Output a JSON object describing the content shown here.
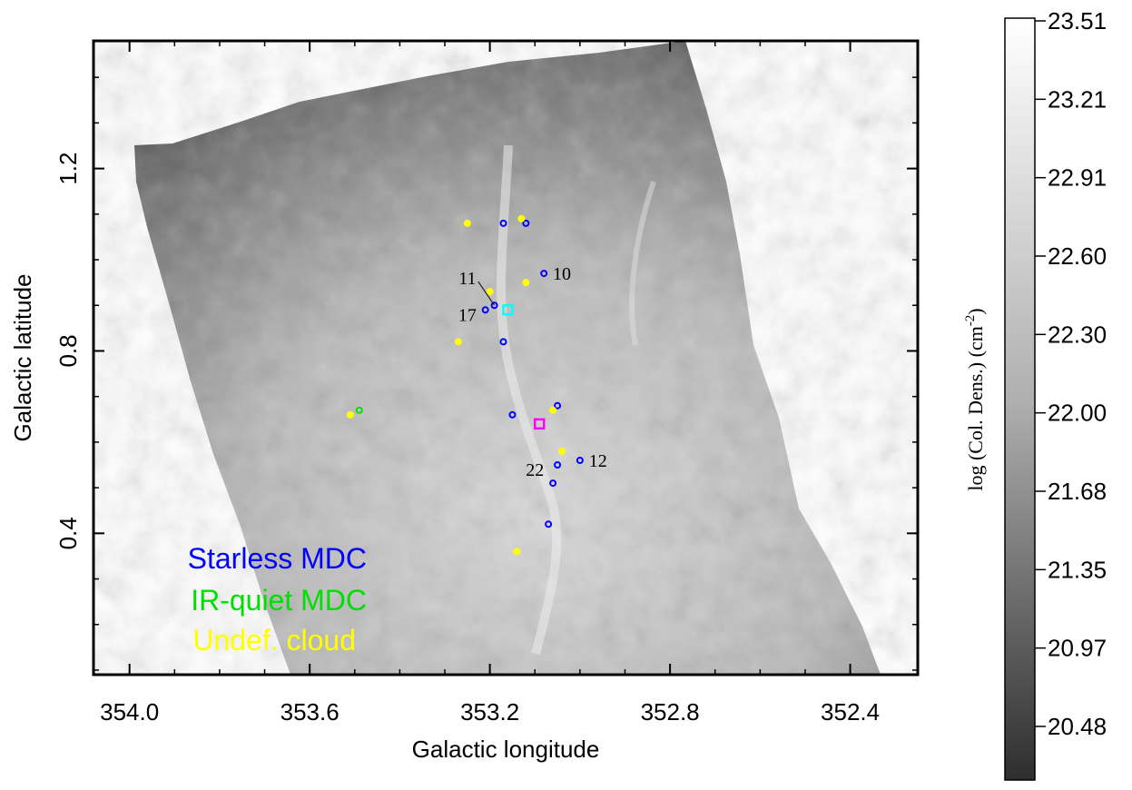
{
  "chart_data": {
    "type": "scatter",
    "background": "column-density map (grayscale)",
    "xlabel": "Galactic longitude",
    "ylabel": "Galactic latitude",
    "xlim": [
      354.08,
      352.25
    ],
    "ylim": [
      0.09,
      1.48
    ],
    "x_reversed": true,
    "xticks": [
      354.0,
      353.6,
      353.2,
      352.8,
      352.4
    ],
    "xtick_labels": [
      "354.0",
      "353.6",
      "353.2",
      "352.8",
      "352.4"
    ],
    "yticks": [
      1.2,
      0.8,
      0.4
    ],
    "ytick_labels": [
      "1.2",
      "0.8",
      "0.4"
    ],
    "colorbar": {
      "title": "log (Col. Dens.) (cm",
      "title_exponent": "-2",
      "title_suffix": ")",
      "ticks": [
        "23.51",
        "23.21",
        "22.91",
        "22.60",
        "22.30",
        "22.00",
        "21.68",
        "21.35",
        "20.97",
        "20.48"
      ],
      "color_top": "#ffffff",
      "color_bottom": "#2e2e2e"
    },
    "legend": [
      {
        "label": "Starless MDC",
        "color": "#0000ff"
      },
      {
        "label": "IR-quiet MDC",
        "color": "#00e000"
      },
      {
        "label": "Undef. cloud",
        "color": "#ffff00"
      }
    ],
    "series": [
      {
        "name": "Starless MDC",
        "color": "#0000ff",
        "marker": "circle-open",
        "points": [
          [
            353.17,
            1.08
          ],
          [
            353.12,
            1.08
          ],
          [
            353.08,
            0.97
          ],
          [
            353.19,
            0.9
          ],
          [
            353.21,
            0.89
          ],
          [
            353.17,
            0.82
          ],
          [
            353.15,
            0.66
          ],
          [
            353.05,
            0.68
          ],
          [
            353.0,
            0.56
          ],
          [
            353.05,
            0.55
          ],
          [
            353.06,
            0.51
          ],
          [
            353.07,
            0.42
          ]
        ]
      },
      {
        "name": "IR-quiet MDC",
        "color": "#00e000",
        "marker": "circle-open",
        "points": [
          [
            353.49,
            0.67
          ]
        ]
      },
      {
        "name": "Undef. cloud",
        "color": "#ffff00",
        "marker": "circle-filled",
        "points": [
          [
            353.25,
            1.08
          ],
          [
            353.13,
            1.09
          ],
          [
            353.12,
            0.95
          ],
          [
            353.2,
            0.93
          ],
          [
            353.27,
            0.82
          ],
          [
            353.06,
            0.67
          ],
          [
            353.51,
            0.66
          ],
          [
            353.04,
            0.58
          ],
          [
            353.14,
            0.36
          ]
        ]
      }
    ],
    "extra_markers": [
      {
        "shape": "square-open",
        "color": "#00ffff",
        "x": 353.16,
        "y": 0.89
      },
      {
        "shape": "square-open",
        "color": "#ff00ff",
        "x": 353.09,
        "y": 0.64
      }
    ],
    "annotations": [
      {
        "text": "10",
        "x": 353.04,
        "y": 0.97
      },
      {
        "text": "11",
        "x": 353.25,
        "y": 0.96
      },
      {
        "text": "17",
        "x": 353.25,
        "y": 0.88
      },
      {
        "text": "12",
        "x": 352.96,
        "y": 0.56
      },
      {
        "text": "22",
        "x": 353.1,
        "y": 0.54
      }
    ]
  }
}
